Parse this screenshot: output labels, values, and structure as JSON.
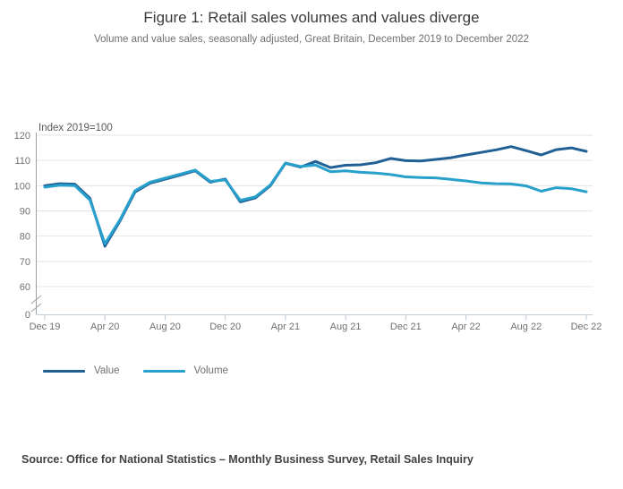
{
  "header": {
    "title": "Figure 1: Retail sales volumes and values diverge",
    "subtitle": "Volume and value sales, seasonally adjusted, Great Britain, December 2019 to December 2022"
  },
  "chart_data": {
    "type": "line",
    "axis_label": "Index 2019=100",
    "x": [
      "Dec 19",
      "Jan 20",
      "Feb 20",
      "Mar 20",
      "Apr 20",
      "May 20",
      "Jun 20",
      "Jul 20",
      "Aug 20",
      "Sep 20",
      "Oct 20",
      "Nov 20",
      "Dec 20",
      "Jan 21",
      "Feb 21",
      "Mar 21",
      "Apr 21",
      "May 21",
      "Jun 21",
      "Jul 21",
      "Aug 21",
      "Sep 21",
      "Oct 21",
      "Nov 21",
      "Dec 21",
      "Jan 22",
      "Feb 22",
      "Mar 22",
      "Apr 22",
      "May 22",
      "Jun 22",
      "Jul 22",
      "Aug 22",
      "Sep 22",
      "Oct 22",
      "Nov 22",
      "Dec 22"
    ],
    "x_tick_labels": [
      "Dec 19",
      "Apr 20",
      "Aug 20",
      "Dec 20",
      "Apr 21",
      "Aug 21",
      "Dec 21",
      "Apr 22",
      "Aug 22",
      "Dec 22"
    ],
    "y_ticks": [
      0,
      60,
      70,
      80,
      90,
      100,
      110,
      120
    ],
    "y_axis_break": true,
    "ylim": [
      0,
      120
    ],
    "grid": "horizontal",
    "legend_position": "bottom-left",
    "series": [
      {
        "name": "Value",
        "color": "#206095",
        "values": [
          100.0,
          100.8,
          100.6,
          95.0,
          76.0,
          86.0,
          97.5,
          101.0,
          102.6,
          104.2,
          105.9,
          101.4,
          102.6,
          93.6,
          95.2,
          100.0,
          108.9,
          107.4,
          109.6,
          107.2,
          108.1,
          108.3,
          109.1,
          110.8,
          109.9,
          109.8,
          110.4,
          111.1,
          112.2,
          113.2,
          114.2,
          115.5,
          113.9,
          112.2,
          114.3,
          115.0,
          113.6
        ]
      },
      {
        "name": "Volume",
        "color": "#27A0CC",
        "values": [
          99.4,
          100.2,
          100.0,
          94.4,
          77.0,
          86.5,
          98.0,
          101.4,
          103.0,
          104.6,
          106.2,
          101.7,
          102.3,
          94.2,
          95.6,
          100.3,
          109.0,
          107.6,
          108.2,
          105.5,
          105.9,
          105.3,
          105.0,
          104.4,
          103.5,
          103.2,
          103.1,
          102.5,
          101.9,
          101.1,
          100.8,
          100.7,
          99.9,
          97.8,
          99.2,
          98.8,
          97.6
        ]
      }
    ],
    "colors": {
      "gridline": "#e4e4e4",
      "y_axis": "#9aa0a5",
      "x_axis": "#c2cdd6",
      "tick": "#b9c9d8",
      "tick_label": "#707071",
      "axis_label": "#585b5d"
    }
  },
  "legend": {
    "items": [
      {
        "label": "Value",
        "color": "#206095"
      },
      {
        "label": "Volume",
        "color": "#27A0CC"
      }
    ]
  },
  "footer": {
    "source": "Source: Office for National Statistics – Monthly Business Survey, Retail Sales Inquiry"
  }
}
